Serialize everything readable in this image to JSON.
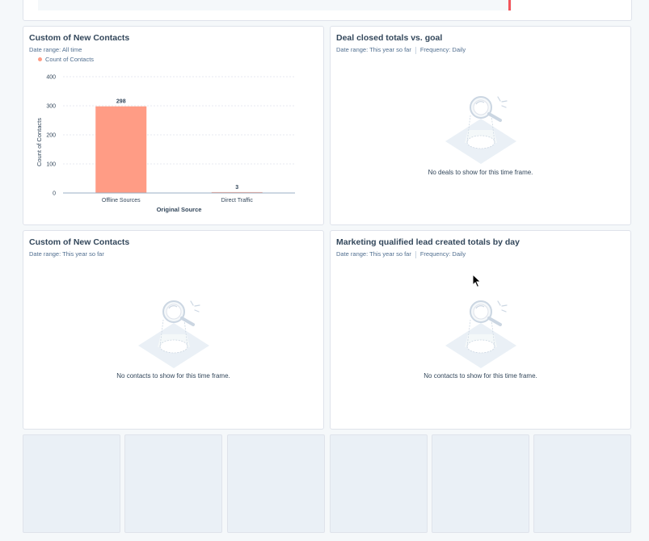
{
  "colors": {
    "bar": "#ff9c85",
    "accent_red": "#f2545b"
  },
  "cards": [
    {
      "title": "Custom of New Contacts",
      "date_range": "Date range: All time"
    },
    {
      "title": "Deal closed totals vs. goal",
      "date_range": "Date range: This year so far",
      "frequency": "Frequency: Daily",
      "empty_message": "No deals to show for this time frame.",
      "empty_icon": "magnifying-glass-icon"
    },
    {
      "title": "Custom of New Contacts",
      "date_range": "Date range: This year so far",
      "empty_message": "No contacts to show for this time frame.",
      "empty_icon": "magnifying-glass-icon"
    },
    {
      "title": "Marketing qualified lead created totals by day",
      "date_range": "Date range: This year so far",
      "frequency": "Frequency: Daily",
      "empty_message": "No contacts to show for this time frame.",
      "empty_icon": "magnifying-glass-icon"
    }
  ],
  "chart_data": {
    "type": "bar",
    "categories": [
      "Offline Sources",
      "Direct Traffic"
    ],
    "series": [
      {
        "name": "Count of Contacts",
        "values": [
          298,
          3
        ]
      }
    ],
    "data_labels": [
      "298",
      "3"
    ],
    "xlabel": "Original Source",
    "ylabel": "Count of Contacts",
    "ylim": [
      0,
      400
    ],
    "yticks": [
      "0",
      "100",
      "200",
      "300",
      "400"
    ],
    "grid": true,
    "legend": "top-left"
  }
}
